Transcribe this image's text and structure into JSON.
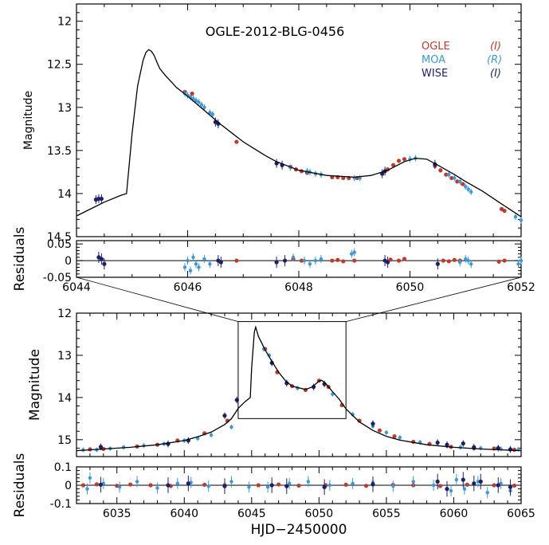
{
  "chart_data": [
    {
      "type": "scatter",
      "title": "OGLE-2012-BLG-0456",
      "xlabel": "",
      "ylabel": "Magnitude",
      "xlim": [
        6044,
        6052
      ],
      "ylim": [
        14.5,
        11.8
      ],
      "y_inverted": true,
      "grid": false,
      "legend_placement": "top-right",
      "y_ticks": [
        "12",
        "12.5",
        "13",
        "13.5",
        "14",
        "14.5"
      ],
      "series": [
        {
          "name": "OGLE",
          "band": "(I)",
          "color": "#c0392b",
          "x": [
            6045.95,
            6046.08,
            6046.88,
            6047.85,
            6047.95,
            6048.05,
            6048.15,
            6048.6,
            6048.7,
            6048.8,
            6048.9,
            6049.05,
            6049.6,
            6049.7,
            6049.8,
            6049.9,
            6050.45,
            6050.55,
            6050.65,
            6050.75,
            6050.85,
            6050.95,
            6051.65,
            6051.7
          ],
          "y": [
            12.82,
            12.84,
            13.4,
            13.69,
            13.72,
            13.74,
            13.76,
            13.81,
            13.81,
            13.82,
            13.82,
            13.82,
            13.72,
            13.67,
            13.62,
            13.6,
            13.68,
            13.73,
            13.78,
            13.82,
            13.86,
            13.89,
            14.18,
            14.2
          ]
        },
        {
          "name": "MOA",
          "band": "(R)",
          "color": "#3a9ad9",
          "x": [
            6045.95,
            6046.0,
            6046.05,
            6046.1,
            6046.15,
            6046.2,
            6046.25,
            6046.3,
            6046.4,
            6046.45,
            6047.85,
            6048.15,
            6048.2,
            6048.3,
            6048.4,
            6049.0,
            6049.1,
            6050.0,
            6050.1,
            6050.7,
            6050.8,
            6050.9,
            6051.0,
            6051.05,
            6051.1,
            6051.9,
            6052.0
          ],
          "y": [
            12.84,
            12.86,
            12.88,
            12.9,
            12.92,
            12.94,
            12.97,
            13.0,
            13.06,
            13.08,
            13.7,
            13.74,
            13.75,
            13.77,
            13.78,
            13.82,
            13.82,
            13.6,
            13.59,
            13.78,
            13.82,
            13.86,
            13.92,
            13.95,
            13.98,
            14.27,
            14.31
          ]
        },
        {
          "name": "WISE",
          "band": "(I)",
          "color": "#1b1f6e",
          "x": [
            6044.35,
            6044.4,
            6044.45,
            6046.5,
            6046.55,
            6047.6,
            6047.7,
            6049.5,
            6049.55,
            6050.45
          ],
          "y": [
            14.07,
            14.06,
            14.06,
            13.17,
            13.19,
            13.65,
            13.67,
            13.77,
            13.74,
            13.66
          ]
        }
      ],
      "model_curve": {
        "x": [
          6044.0,
          6044.5,
          6044.8,
          6044.9,
          6044.95,
          6045.0,
          6045.1,
          6045.2,
          6045.25,
          6045.3,
          6045.35,
          6045.4,
          6045.45,
          6045.5,
          6045.6,
          6045.7,
          6045.8,
          6045.9,
          6046.0,
          6046.2,
          6046.4,
          6046.6,
          6046.8,
          6047.0,
          6047.2,
          6047.4,
          6047.6,
          6047.8,
          6048.0,
          6048.5,
          6049.0,
          6049.3,
          6049.6,
          6049.9,
          6050.1,
          6050.3,
          6050.5,
          6050.8,
          6051.0,
          6051.3,
          6051.6,
          6052.0
        ],
        "y": [
          14.26,
          14.1,
          14.02,
          14.0,
          13.65,
          13.3,
          12.75,
          12.45,
          12.36,
          12.33,
          12.35,
          12.4,
          12.48,
          12.55,
          12.63,
          12.7,
          12.77,
          12.82,
          12.87,
          12.98,
          13.09,
          13.2,
          13.3,
          13.4,
          13.48,
          13.56,
          13.63,
          13.68,
          13.73,
          13.79,
          13.81,
          13.79,
          13.73,
          13.63,
          13.59,
          13.6,
          13.67,
          13.78,
          13.86,
          13.97,
          14.1,
          14.27
        ]
      }
    },
    {
      "type": "scatter",
      "title": "",
      "xlabel": "",
      "ylabel": "Residuals",
      "xlim": [
        6044,
        6052
      ],
      "ylim": [
        -0.05,
        0.06
      ],
      "x_ticks": [
        "6044",
        "6046",
        "6048",
        "6050",
        "6052"
      ],
      "y_ticks": [
        "0.05",
        "0",
        "-0.05"
      ],
      "series": [
        {
          "name": "OGLE",
          "x": [
            6046.88,
            6047.9,
            6048.05,
            6048.6,
            6048.7,
            6048.8,
            6049.0,
            6049.65,
            6049.8,
            6049.9,
            6050.6,
            6050.7,
            6050.8,
            6050.9,
            6051.6,
            6051.7
          ],
          "y": [
            0.0,
            0.005,
            0.0,
            0.0,
            0.002,
            -0.002,
            0.0,
            0.003,
            0.0,
            0.005,
            0.0,
            -0.002,
            0.002,
            0.0,
            -0.003,
            0.0
          ]
        },
        {
          "name": "MOA",
          "x": [
            6045.95,
            6046.0,
            6046.05,
            6046.1,
            6046.15,
            6046.2,
            6046.3,
            6046.4,
            6047.9,
            6048.1,
            6048.2,
            6048.3,
            6048.4,
            6048.95,
            6049.0,
            6050.9,
            6051.0,
            6051.05,
            6051.1,
            6051.95,
            6052.0
          ],
          "y": [
            -0.02,
            0.0,
            -0.03,
            0.01,
            -0.01,
            -0.02,
            0.005,
            -0.01,
            0.01,
            0.0,
            -0.01,
            0.0,
            0.005,
            0.02,
            0.025,
            -0.005,
            0.005,
            0.0,
            -0.01,
            -0.01,
            0.0
          ]
        },
        {
          "name": "WISE",
          "x": [
            6044.4,
            6044.45,
            6044.5,
            6046.55,
            6046.6,
            6047.6,
            6047.75,
            6049.55,
            6049.6,
            6050.5
          ],
          "y": [
            0.01,
            0.005,
            -0.01,
            0.0,
            -0.005,
            -0.005,
            0.0,
            0.0,
            -0.005,
            -0.01
          ]
        }
      ]
    },
    {
      "type": "scatter",
      "title": "",
      "xlabel": "",
      "ylabel": "Magnitude",
      "xlim": [
        6032,
        6065
      ],
      "ylim": [
        15.4,
        12.0
      ],
      "y_inverted": true,
      "y_ticks": [
        "12",
        "13",
        "14",
        "15"
      ],
      "inset_box": {
        "x": [
          6044,
          6052
        ],
        "y": [
          12.2,
          14.5
        ]
      },
      "series": [
        {
          "name": "OGLE",
          "x": [
            6033.0,
            6034.0,
            6036.5,
            6038.0,
            6039.5,
            6041.5,
            6043.2,
            6046.0,
            6046.9,
            6048.0,
            6049.0,
            6050.0,
            6050.7,
            6051.7,
            6053.0,
            6054.5,
            6055.6,
            6057.0,
            6058.2,
            6059.8,
            6061.5,
            6063.0,
            6064.5
          ],
          "y": [
            15.23,
            15.22,
            15.16,
            15.12,
            15.02,
            14.85,
            14.55,
            12.85,
            13.4,
            13.73,
            13.82,
            13.6,
            13.75,
            14.18,
            14.55,
            14.78,
            14.92,
            15.05,
            15.1,
            15.17,
            15.2,
            15.21,
            15.24
          ]
        },
        {
          "name": "MOA",
          "x": [
            6032.5,
            6033.5,
            6034.5,
            6035.5,
            6037.0,
            6038.5,
            6040.0,
            6041.0,
            6042.0,
            6043.5,
            6045.9,
            6046.3,
            6048.4,
            6051.0,
            6052.5,
            6054.0,
            6055.0,
            6056.0,
            6057.5,
            6059.5,
            6060.5,
            6062.0,
            6063.5,
            6064.8
          ],
          "y": [
            15.24,
            15.24,
            15.21,
            15.18,
            15.14,
            15.1,
            15.02,
            14.97,
            14.89,
            14.7,
            12.85,
            13.0,
            13.78,
            13.92,
            14.4,
            14.68,
            14.83,
            14.95,
            15.06,
            15.15,
            15.18,
            15.2,
            15.22,
            15.23
          ]
        },
        {
          "name": "WISE",
          "x": [
            6033.8,
            6038.8,
            6040.3,
            6043.0,
            6043.9,
            6046.5,
            6047.6,
            6049.6,
            6050.4,
            6054.0,
            6058.8,
            6059.5,
            6060.7,
            6061.5,
            6063.3,
            6064.2
          ],
          "y": [
            15.17,
            15.1,
            15.02,
            14.43,
            14.06,
            13.18,
            13.66,
            13.75,
            13.68,
            14.62,
            15.07,
            15.12,
            15.09,
            15.18,
            15.2,
            15.23
          ]
        }
      ],
      "model_curve": {
        "x": [
          6032,
          6034,
          6036,
          6038,
          6040,
          6041,
          6042,
          6043,
          6043.5,
          6044.0,
          6044.5,
          6044.9,
          6045.0,
          6045.2,
          6045.3,
          6045.5,
          6046.0,
          6046.5,
          6047.0,
          6047.5,
          6048.0,
          6049.0,
          6049.5,
          6050.0,
          6050.2,
          6050.5,
          6051.0,
          6051.5,
          6052.0,
          6053.0,
          6054.0,
          6055.0,
          6056.0,
          6058.0,
          6060.0,
          6062.0,
          6065.0
        ],
        "y": [
          15.26,
          15.22,
          15.18,
          15.12,
          15.02,
          14.93,
          14.82,
          14.64,
          14.5,
          14.26,
          14.1,
          14.0,
          13.3,
          12.45,
          12.33,
          12.55,
          12.87,
          13.14,
          13.4,
          13.6,
          13.73,
          13.81,
          13.75,
          13.61,
          13.59,
          13.67,
          13.86,
          14.04,
          14.27,
          14.58,
          14.78,
          14.92,
          15.01,
          15.12,
          15.18,
          15.22,
          15.26
        ]
      }
    },
    {
      "type": "scatter",
      "title": "",
      "xlabel": "HJD−2450000",
      "ylabel": "Residuals",
      "xlim": [
        6032,
        6065
      ],
      "ylim": [
        -0.1,
        0.1
      ],
      "x_ticks": [
        "6035",
        "6040",
        "6045",
        "6050",
        "6055",
        "6060",
        "6065"
      ],
      "y_ticks": [
        "0.1",
        "0",
        "-0.1"
      ],
      "series": [
        {
          "name": "OGLE",
          "x": [
            6032.5,
            6033.5,
            6035.0,
            6036.0,
            6037.5,
            6039.0,
            6041.5,
            6043.0,
            6045.5,
            6047.0,
            6048.5,
            6050.5,
            6052.0,
            6053.5,
            6055.5,
            6057.0,
            6059.0,
            6061.0,
            6063.0,
            6064.5
          ],
          "y": [
            0.0,
            0.005,
            -0.003,
            0.004,
            0.0,
            -0.004,
            0.003,
            0.0,
            0.0,
            0.004,
            -0.002,
            0.0,
            0.003,
            -0.003,
            0.002,
            0.0,
            -0.004,
            0.003,
            0.0,
            -0.002
          ]
        },
        {
          "name": "MOA",
          "x": [
            6032.8,
            6033.0,
            6034.0,
            6035.2,
            6036.5,
            6038.0,
            6039.5,
            6040.5,
            6041.8,
            6043.5,
            6044.8,
            6046.2,
            6047.8,
            6049.2,
            6050.8,
            6052.5,
            6054.0,
            6055.5,
            6057.0,
            6058.5,
            6059.8,
            6060.2,
            6060.8,
            6061.8,
            6062.5,
            6063.5,
            6064.2
          ],
          "y": [
            -0.02,
            0.04,
            0.01,
            -0.01,
            0.02,
            -0.015,
            0.01,
            0.015,
            -0.005,
            0.02,
            -0.01,
            -0.01,
            0.01,
            0.02,
            0.0,
            0.01,
            0.015,
            -0.005,
            0.02,
            0.0,
            -0.03,
            0.03,
            -0.02,
            0.02,
            -0.04,
            0.01,
            -0.03
          ]
        },
        {
          "name": "WISE",
          "x": [
            6033.8,
            6038.8,
            6040.3,
            6043.0,
            6046.5,
            6047.6,
            6050.4,
            6054.0,
            6058.8,
            6059.5,
            6060.7,
            6061.5,
            6062.0,
            6063.3,
            6064.2
          ],
          "y": [
            0.003,
            0.0,
            0.01,
            -0.005,
            0.0,
            -0.005,
            -0.01,
            0.005,
            0.02,
            -0.02,
            0.03,
            0.01,
            0.02,
            0.0,
            -0.01
          ]
        }
      ]
    }
  ],
  "colors": {
    "ogle": "#c0392b",
    "moa": "#3a9ad9",
    "wise": "#1b1f6e",
    "model": "#000000"
  },
  "legend": [
    {
      "name": "OGLE",
      "band": "(I)",
      "color": "#c0392b"
    },
    {
      "name": "MOA",
      "band": "(R)",
      "color": "#3a9ad9"
    },
    {
      "name": "WISE",
      "band": "(I)",
      "color": "#1b1f6e"
    }
  ]
}
